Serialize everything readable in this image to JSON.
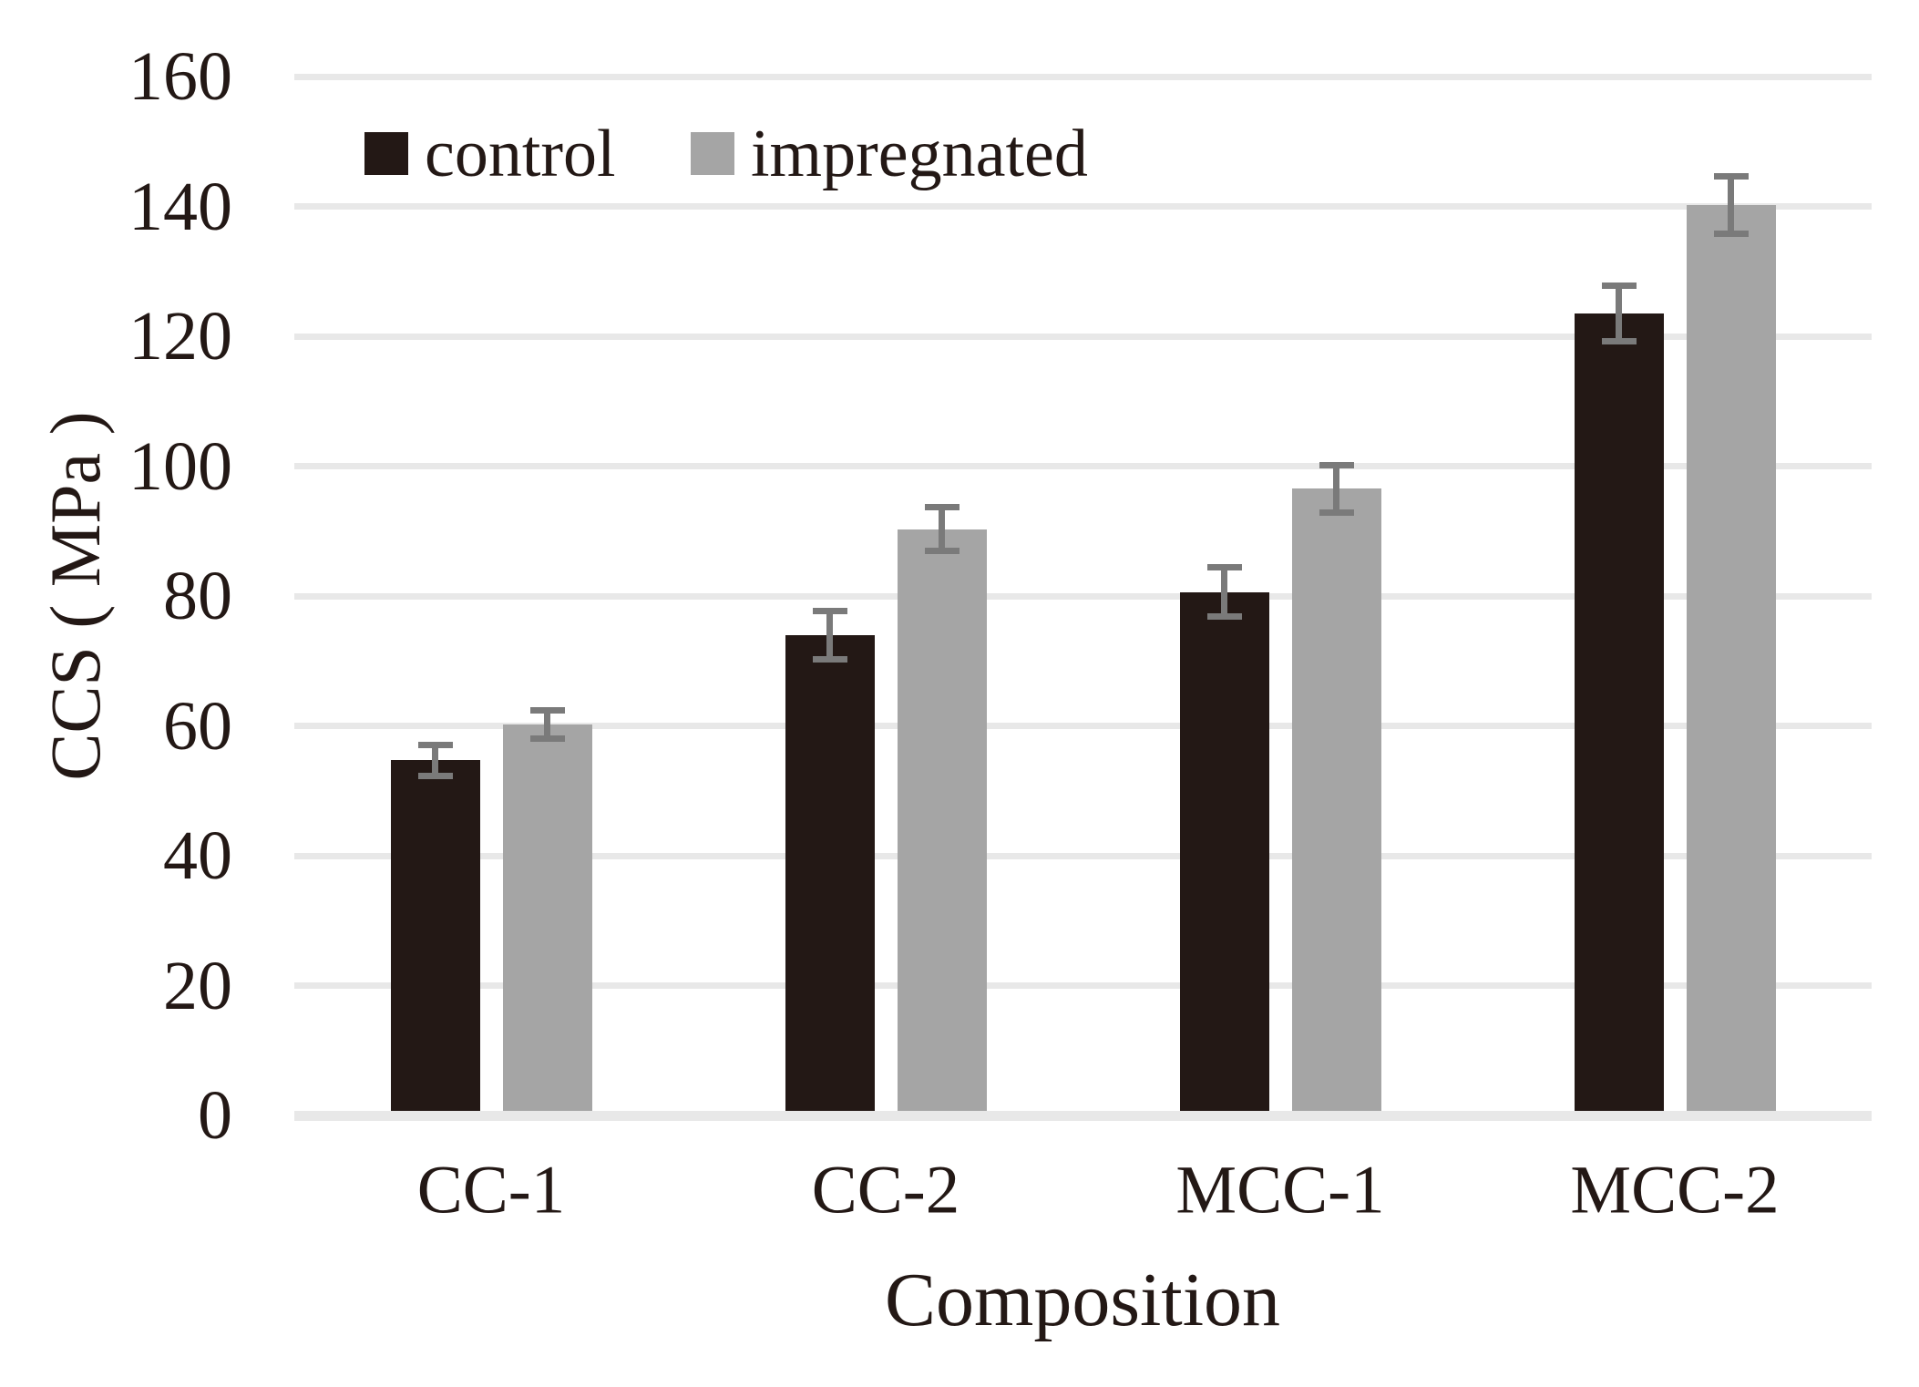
{
  "chart_data": {
    "type": "bar",
    "title": "",
    "categories": [
      "CC-1",
      "CC-2",
      "MCC-1",
      "MCC-2"
    ],
    "series": [
      {
        "name": "control",
        "color": "#231815",
        "values": [
          54.7,
          74.0,
          80.6,
          123.5
        ],
        "errors": [
          2.4,
          3.7,
          3.8,
          4.3
        ]
      },
      {
        "name": "impregnated",
        "color": "#a5a5a5",
        "values": [
          60.2,
          90.3,
          96.5,
          140.2
        ],
        "errors": [
          2.2,
          3.4,
          3.6,
          4.4
        ]
      }
    ],
    "xlabel": "Composition",
    "ylabel": "CCS ( MPa )",
    "ylim": [
      0,
      160
    ],
    "ytick_step": 20,
    "yticks": [
      0,
      20,
      40,
      60,
      80,
      100,
      120,
      140,
      160
    ],
    "grid": "horizontal",
    "gridline_color": "#e8e8e8",
    "error_bar_color": "#7a7a7a",
    "legend_position": "top",
    "background": "#ffffff"
  },
  "legend": {
    "items": [
      {
        "label": "control",
        "color": "#231815"
      },
      {
        "label": "impregnated",
        "color": "#a5a5a5"
      }
    ]
  }
}
